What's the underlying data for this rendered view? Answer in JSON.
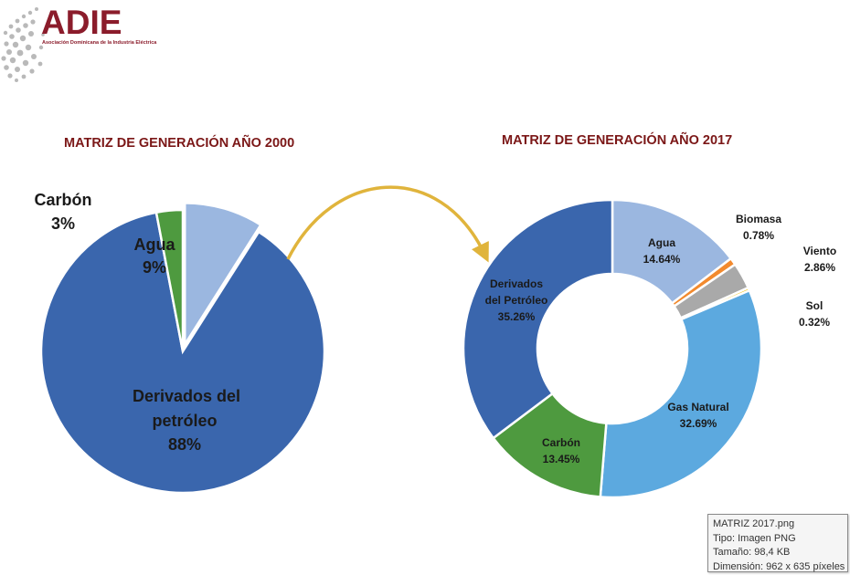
{
  "logo": {
    "name": "ADIE",
    "subtitle": "Asociación Dominicana de la Industria Eléctrica"
  },
  "chart_data": [
    {
      "type": "pie",
      "title": "MATRIZ DE GENERACIÓN AÑO 2000",
      "slices": [
        {
          "name": "Agua",
          "value": 9,
          "label": "9%",
          "color": "#9bb7e0"
        },
        {
          "name": "Derivados del petróleo",
          "value": 88,
          "label": "88%",
          "color": "#3a66ad"
        },
        {
          "name": "Carbón",
          "value": 3,
          "label": "3%",
          "color": "#4e9a3f"
        }
      ]
    },
    {
      "type": "pie",
      "subtype": "donut",
      "title": "MATRIZ DE GENERACIÓN AÑO 2017",
      "slices": [
        {
          "name": "Agua",
          "value": 14.64,
          "label": "14.64%",
          "color": "#9bb7e0"
        },
        {
          "name": "Biomasa",
          "value": 0.78,
          "label": "0.78%",
          "color": "#f28a2e"
        },
        {
          "name": "Viento",
          "value": 2.86,
          "label": "2.86%",
          "color": "#a9a9a9"
        },
        {
          "name": "Sol",
          "value": 0.32,
          "label": "0.32%",
          "color": "#f2c318"
        },
        {
          "name": "Gas Natural",
          "value": 32.69,
          "label": "32.69%",
          "color": "#5ca9df"
        },
        {
          "name": "Carbón",
          "value": 13.45,
          "label": "13.45%",
          "color": "#4e9a3f"
        },
        {
          "name": "Derivados del Petróleo",
          "value": 35.26,
          "label": "35.26%",
          "color": "#3a66ad"
        }
      ]
    }
  ],
  "labels": {
    "pie2000": {
      "carbon": {
        "line1": "Carbón",
        "line2": "3%"
      },
      "agua": {
        "line1": "Agua",
        "line2": "9%"
      },
      "derivados": {
        "line1": "Derivados del",
        "line2": "petróleo",
        "line3": "88%"
      }
    },
    "donut2017": {
      "agua": {
        "line1": "Agua",
        "line2": "14.64%"
      },
      "biomasa": {
        "line1": "Biomasa",
        "line2": "0.78%"
      },
      "viento": {
        "line1": "Viento",
        "line2": "2.86%"
      },
      "sol": {
        "line1": "Sol",
        "line2": "0.32%"
      },
      "gas": {
        "line1": "Gas Natural",
        "line2": "32.69%"
      },
      "carbon": {
        "line1": "Carbón",
        "line2": "13.45%"
      },
      "derivados": {
        "line1": "Derivados",
        "line2": "del Petróleo",
        "line3": "35.26%"
      }
    }
  },
  "arrow_color": "#e0b43c",
  "tooltip": {
    "filename": "MATRIZ 2017.png",
    "type": "Tipo: Imagen PNG",
    "size": "Tamaño: 98,4 KB",
    "dimension": "Dimensión: 962 x 635 píxeles"
  }
}
